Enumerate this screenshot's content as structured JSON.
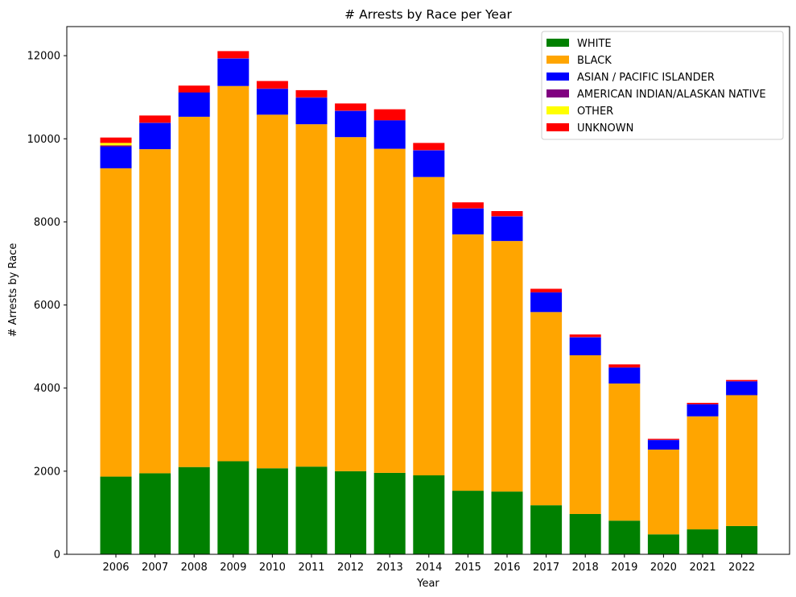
{
  "chart_data": {
    "type": "bar",
    "stacked": true,
    "title": "# Arrests by Race per Year",
    "xlabel": "Year",
    "ylabel": "# Arrests by Race",
    "ylim": [
      0,
      12700
    ],
    "yticks": [
      0,
      2000,
      4000,
      6000,
      8000,
      10000,
      12000
    ],
    "grid": false,
    "legend_position": "top-right",
    "categories": [
      "2006",
      "2007",
      "2008",
      "2009",
      "2010",
      "2011",
      "2012",
      "2013",
      "2014",
      "2015",
      "2016",
      "2017",
      "2018",
      "2019",
      "2020",
      "2021",
      "2022"
    ],
    "series": [
      {
        "name": "WHITE",
        "color": "#008000",
        "values": [
          1870,
          1950,
          2100,
          2240,
          2070,
          2110,
          2000,
          1960,
          1900,
          1530,
          1510,
          1180,
          970,
          810,
          480,
          600,
          680
        ]
      },
      {
        "name": "BLACK",
        "color": "#ffa500",
        "values": [
          7420,
          7800,
          8430,
          9030,
          8510,
          8240,
          8040,
          7800,
          7180,
          6170,
          6030,
          4650,
          3820,
          3300,
          2040,
          2720,
          3150
        ]
      },
      {
        "name": "ASIAN / PACIFIC ISLANDER",
        "color": "#0000ff",
        "values": [
          520,
          630,
          580,
          660,
          620,
          640,
          630,
          680,
          640,
          620,
          590,
          470,
          430,
          380,
          230,
          290,
          330
        ]
      },
      {
        "name": "AMERICAN INDIAN/ALASKAN NATIVE",
        "color": "#800080",
        "values": [
          30,
          10,
          10,
          10,
          10,
          10,
          10,
          10,
          10,
          10,
          10,
          10,
          10,
          10,
          5,
          5,
          5
        ]
      },
      {
        "name": "OTHER",
        "color": "#ffff00",
        "values": [
          60,
          0,
          0,
          0,
          0,
          0,
          0,
          0,
          0,
          0,
          0,
          0,
          0,
          0,
          0,
          0,
          0
        ]
      },
      {
        "name": "UNKNOWN",
        "color": "#ff0000",
        "values": [
          130,
          170,
          160,
          170,
          180,
          170,
          170,
          260,
          170,
          140,
          120,
          80,
          60,
          70,
          25,
          30,
          30
        ]
      }
    ]
  }
}
